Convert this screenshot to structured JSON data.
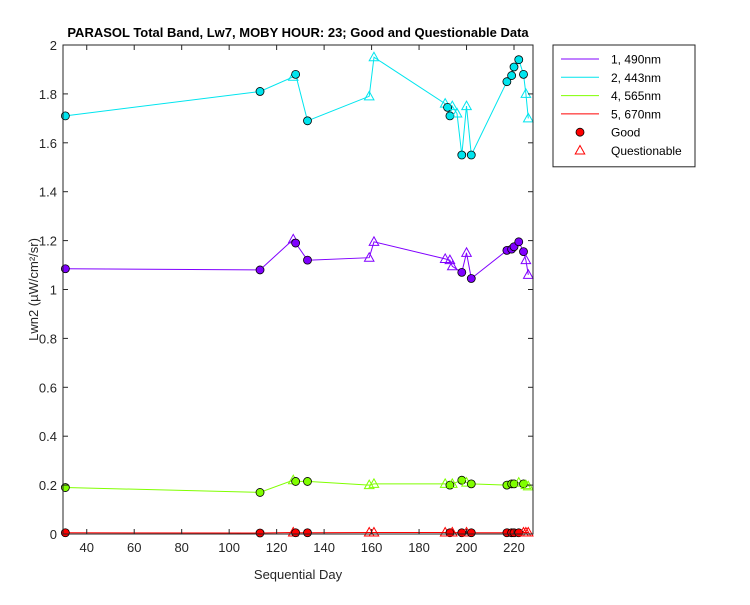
{
  "chart_data": {
    "type": "line",
    "title": "PARASOL Total Band, Lw7, MOBY HOUR: 23;  Good and Questionable Data",
    "xlabel": "Sequential Day",
    "ylabel": "Lwn2 (µW/cm²/sr)",
    "xlim": [
      30,
      228
    ],
    "ylim": [
      0,
      2
    ],
    "xticks": [
      40,
      60,
      80,
      100,
      120,
      140,
      160,
      180,
      200,
      220
    ],
    "yticks": [
      0,
      0.2,
      0.4,
      0.6,
      0.8,
      1,
      1.2,
      1.4,
      1.6,
      1.8,
      2
    ],
    "legend_position": "outside-top-right",
    "legend": [
      {
        "label": "1, 490nm",
        "kind": "line",
        "color": "#8000ff"
      },
      {
        "label": "2, 443nm",
        "kind": "line",
        "color": "#00e5ee"
      },
      {
        "label": "4, 565nm",
        "kind": "line",
        "color": "#80ff00"
      },
      {
        "label": "5, 670nm",
        "kind": "line",
        "color": "#ff0000"
      },
      {
        "label": "Good",
        "kind": "marker-good",
        "color": "#ff0000"
      },
      {
        "label": "Questionable",
        "kind": "marker-questionable",
        "color": "#ff0000"
      }
    ],
    "series": [
      {
        "name": "1, 490nm",
        "color": "#8000ff",
        "points": [
          {
            "x": 31,
            "y": 1.085,
            "q": "good"
          },
          {
            "x": 113,
            "y": 1.08,
            "q": "good"
          },
          {
            "x": 127,
            "y": 1.205,
            "q": "questionable"
          },
          {
            "x": 128,
            "y": 1.19,
            "q": "good"
          },
          {
            "x": 133,
            "y": 1.12,
            "q": "good"
          },
          {
            "x": 159,
            "y": 1.13,
            "q": "questionable"
          },
          {
            "x": 161,
            "y": 1.195,
            "q": "questionable"
          },
          {
            "x": 191,
            "y": 1.125,
            "q": "questionable"
          },
          {
            "x": 193,
            "y": 1.12,
            "q": "questionable"
          },
          {
            "x": 194,
            "y": 1.095,
            "q": "questionable"
          },
          {
            "x": 198,
            "y": 1.07,
            "q": "good"
          },
          {
            "x": 200,
            "y": 1.15,
            "q": "questionable"
          },
          {
            "x": 202,
            "y": 1.045,
            "q": "good"
          },
          {
            "x": 217,
            "y": 1.16,
            "q": "good"
          },
          {
            "x": 219,
            "y": 1.165,
            "q": "good"
          },
          {
            "x": 220,
            "y": 1.175,
            "q": "good"
          },
          {
            "x": 222,
            "y": 1.195,
            "q": "good"
          },
          {
            "x": 224,
            "y": 1.155,
            "q": "good"
          },
          {
            "x": 225,
            "y": 1.12,
            "q": "questionable"
          },
          {
            "x": 226,
            "y": 1.06,
            "q": "questionable"
          }
        ]
      },
      {
        "name": "2, 443nm",
        "color": "#00e5ee",
        "points": [
          {
            "x": 31,
            "y": 1.71,
            "q": "good"
          },
          {
            "x": 113,
            "y": 1.81,
            "q": "good"
          },
          {
            "x": 127,
            "y": 1.87,
            "q": "questionable"
          },
          {
            "x": 128,
            "y": 1.88,
            "q": "good"
          },
          {
            "x": 133,
            "y": 1.69,
            "q": "good"
          },
          {
            "x": 159,
            "y": 1.79,
            "q": "questionable"
          },
          {
            "x": 161,
            "y": 1.95,
            "q": "questionable"
          },
          {
            "x": 191,
            "y": 1.76,
            "q": "questionable"
          },
          {
            "x": 192,
            "y": 1.745,
            "q": "good"
          },
          {
            "x": 193,
            "y": 1.71,
            "q": "good"
          },
          {
            "x": 194,
            "y": 1.75,
            "q": "questionable"
          },
          {
            "x": 196,
            "y": 1.72,
            "q": "questionable"
          },
          {
            "x": 198,
            "y": 1.55,
            "q": "good"
          },
          {
            "x": 200,
            "y": 1.75,
            "q": "questionable"
          },
          {
            "x": 202,
            "y": 1.55,
            "q": "good"
          },
          {
            "x": 217,
            "y": 1.85,
            "q": "good"
          },
          {
            "x": 219,
            "y": 1.875,
            "q": "good"
          },
          {
            "x": 220,
            "y": 1.91,
            "q": "good"
          },
          {
            "x": 222,
            "y": 1.94,
            "q": "good"
          },
          {
            "x": 224,
            "y": 1.88,
            "q": "good"
          },
          {
            "x": 225,
            "y": 1.8,
            "q": "questionable"
          },
          {
            "x": 226,
            "y": 1.7,
            "q": "questionable"
          }
        ]
      },
      {
        "name": "4, 565nm",
        "color": "#80ff00",
        "points": [
          {
            "x": 31,
            "y": 0.19,
            "q": "good"
          },
          {
            "x": 113,
            "y": 0.17,
            "q": "good"
          },
          {
            "x": 127,
            "y": 0.22,
            "q": "questionable"
          },
          {
            "x": 128,
            "y": 0.215,
            "q": "good"
          },
          {
            "x": 133,
            "y": 0.215,
            "q": "good"
          },
          {
            "x": 159,
            "y": 0.2,
            "q": "questionable"
          },
          {
            "x": 161,
            "y": 0.205,
            "q": "questionable"
          },
          {
            "x": 191,
            "y": 0.205,
            "q": "questionable"
          },
          {
            "x": 193,
            "y": 0.2,
            "q": "good"
          },
          {
            "x": 194,
            "y": 0.205,
            "q": "questionable"
          },
          {
            "x": 198,
            "y": 0.22,
            "q": "good"
          },
          {
            "x": 200,
            "y": 0.21,
            "q": "questionable"
          },
          {
            "x": 202,
            "y": 0.205,
            "q": "good"
          },
          {
            "x": 217,
            "y": 0.2,
            "q": "good"
          },
          {
            "x": 219,
            "y": 0.205,
            "q": "good"
          },
          {
            "x": 220,
            "y": 0.205,
            "q": "good"
          },
          {
            "x": 222,
            "y": 0.21,
            "q": "questionable"
          },
          {
            "x": 224,
            "y": 0.205,
            "q": "good"
          },
          {
            "x": 225,
            "y": 0.2,
            "q": "questionable"
          },
          {
            "x": 226,
            "y": 0.195,
            "q": "questionable"
          }
        ]
      },
      {
        "name": "5, 670nm",
        "color": "#ff0000",
        "points": [
          {
            "x": 31,
            "y": 0.005,
            "q": "good"
          },
          {
            "x": 113,
            "y": 0.004,
            "q": "good"
          },
          {
            "x": 127,
            "y": 0.006,
            "q": "questionable"
          },
          {
            "x": 128,
            "y": 0.005,
            "q": "good"
          },
          {
            "x": 133,
            "y": 0.005,
            "q": "good"
          },
          {
            "x": 159,
            "y": 0.006,
            "q": "questionable"
          },
          {
            "x": 161,
            "y": 0.006,
            "q": "questionable"
          },
          {
            "x": 191,
            "y": 0.006,
            "q": "questionable"
          },
          {
            "x": 193,
            "y": 0.005,
            "q": "good"
          },
          {
            "x": 194,
            "y": 0.006,
            "q": "questionable"
          },
          {
            "x": 198,
            "y": 0.005,
            "q": "good"
          },
          {
            "x": 200,
            "y": 0.006,
            "q": "questionable"
          },
          {
            "x": 202,
            "y": 0.005,
            "q": "good"
          },
          {
            "x": 217,
            "y": 0.005,
            "q": "good"
          },
          {
            "x": 219,
            "y": 0.005,
            "q": "good"
          },
          {
            "x": 220,
            "y": 0.005,
            "q": "good"
          },
          {
            "x": 222,
            "y": 0.005,
            "q": "good"
          },
          {
            "x": 224,
            "y": 0.006,
            "q": "questionable"
          },
          {
            "x": 225,
            "y": 0.006,
            "q": "questionable"
          },
          {
            "x": 226,
            "y": 0.006,
            "q": "questionable"
          }
        ]
      }
    ]
  }
}
